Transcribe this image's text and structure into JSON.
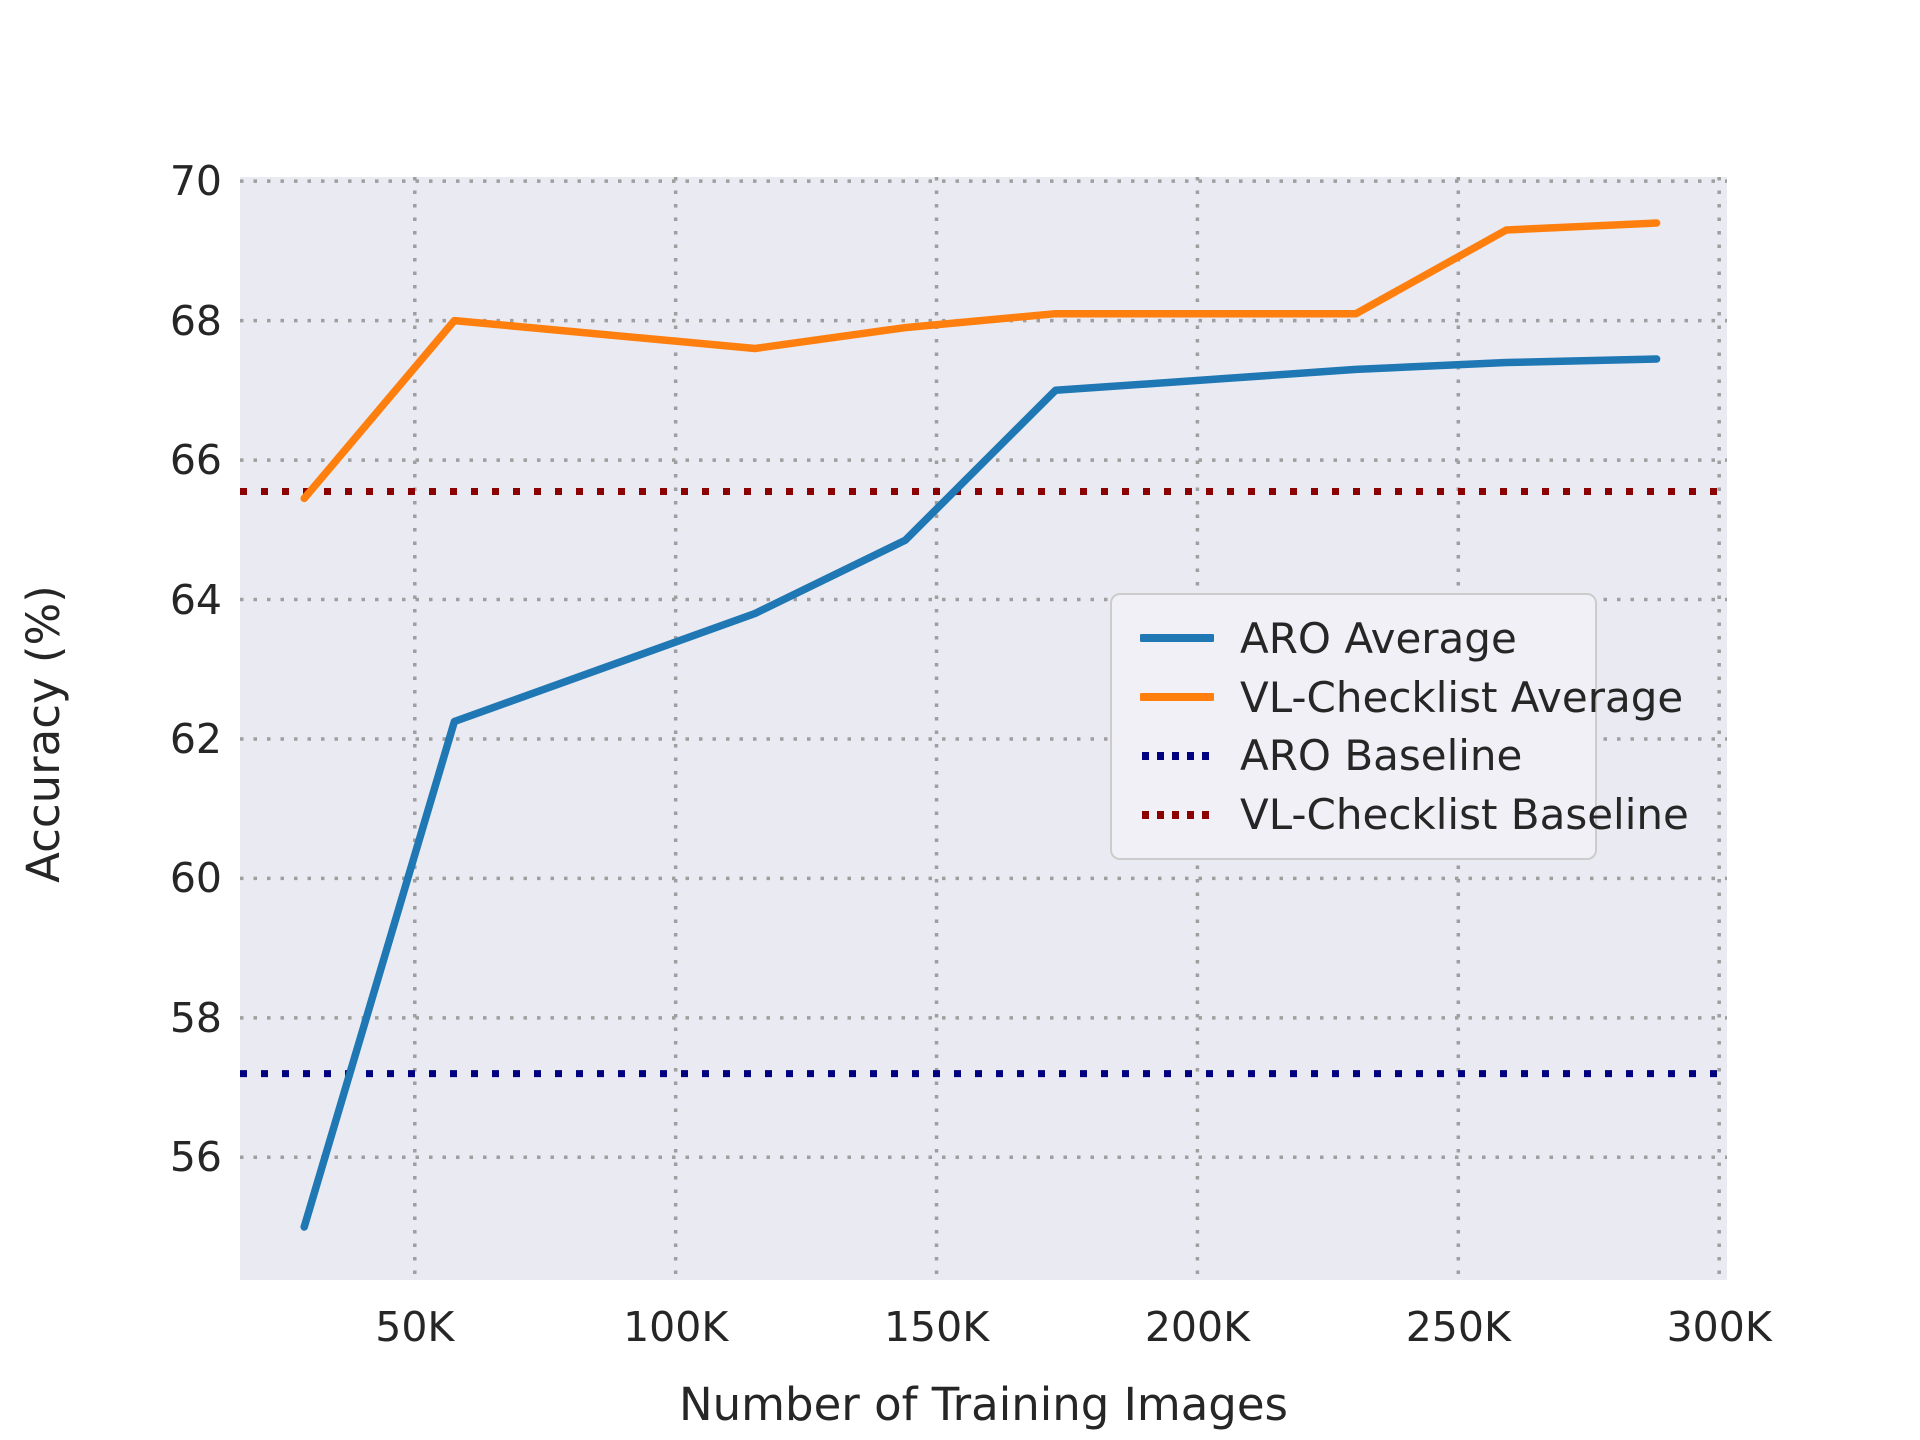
{
  "chart_data": {
    "type": "line",
    "title": "",
    "xlabel": "Number of Training Images",
    "ylabel": "Accuracy (%)",
    "x_unit_suffix": "K",
    "x_thousands": [
      28.8,
      57.6,
      115.2,
      144,
      172.8,
      230.4,
      259.2,
      288
    ],
    "series": [
      {
        "name": "ARO Average",
        "color": "#1f77b4",
        "style": "solid",
        "values": [
          55.0,
          62.25,
          63.8,
          64.85,
          67.0,
          67.3,
          67.4,
          67.45
        ]
      },
      {
        "name": "VL-Checklist Average",
        "color": "#ff7f0e",
        "style": "solid",
        "values": [
          65.45,
          68.0,
          67.6,
          67.9,
          68.1,
          68.1,
          69.3,
          69.4
        ]
      }
    ],
    "baselines": [
      {
        "name": "ARO Baseline",
        "color": "#000080",
        "style": "dotted",
        "value": 57.2
      },
      {
        "name": "VL-Checklist Baseline",
        "color": "#8b0000",
        "style": "dotted",
        "value": 65.55
      }
    ],
    "xticks": [
      {
        "value": 50,
        "label": "50K"
      },
      {
        "value": 100,
        "label": "100K"
      },
      {
        "value": 150,
        "label": "150K"
      },
      {
        "value": 200,
        "label": "200K"
      },
      {
        "value": 250,
        "label": "250K"
      },
      {
        "value": 300,
        "label": "300K"
      }
    ],
    "yticks": [
      {
        "value": 56,
        "label": "56"
      },
      {
        "value": 58,
        "label": "58"
      },
      {
        "value": 60,
        "label": "60"
      },
      {
        "value": 62,
        "label": "62"
      },
      {
        "value": 64,
        "label": "64"
      },
      {
        "value": 66,
        "label": "66"
      },
      {
        "value": 68,
        "label": "68"
      },
      {
        "value": 70,
        "label": "70"
      }
    ],
    "xlim": [
      16.5,
      301.5
    ],
    "ylim": [
      54.24,
      70.06
    ],
    "grid": {
      "on": true,
      "color": "#9f9f9f",
      "style": "dotted"
    },
    "plot_background": "#eaeaf2",
    "legend_position": "center-right",
    "legend_order": [
      "ARO Average",
      "VL-Checklist Average",
      "ARO Baseline",
      "VL-Checklist Baseline"
    ]
  }
}
